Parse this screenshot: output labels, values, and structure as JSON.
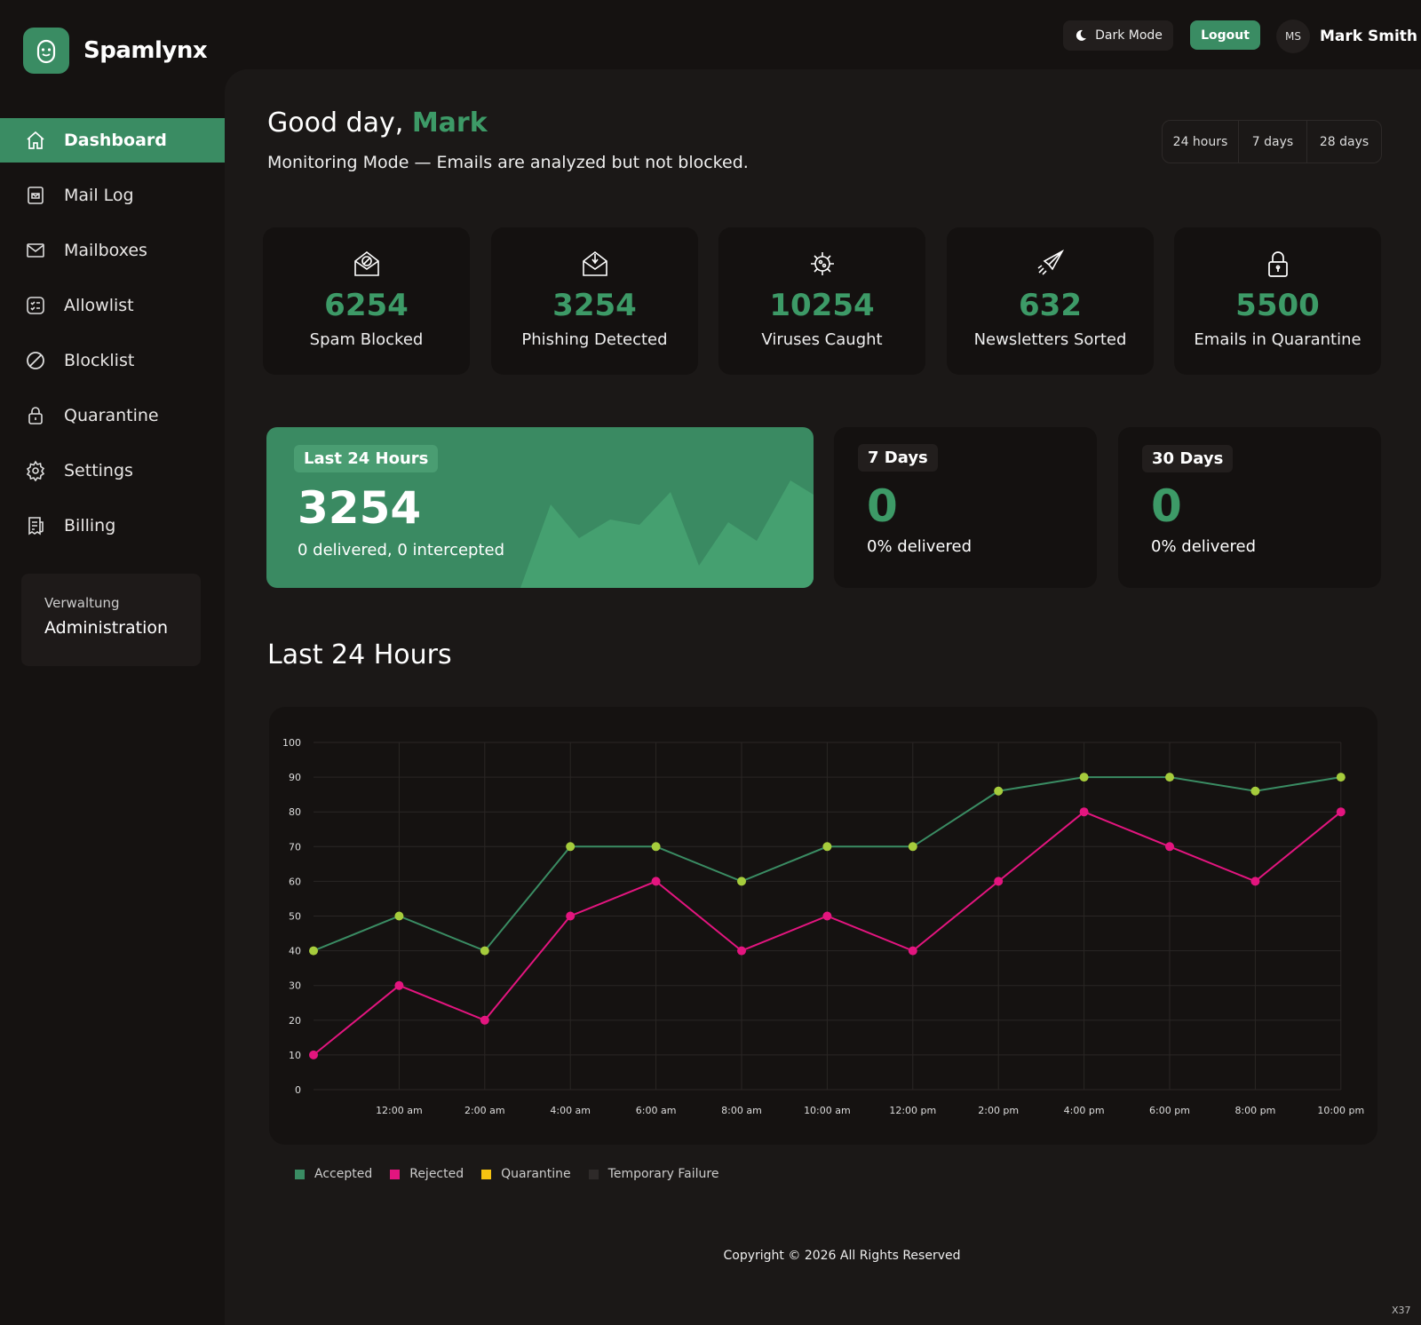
{
  "brand": "Spamlynx",
  "nav": [
    "Dashboard",
    "Mail Log",
    "Mailboxes",
    "Allowlist",
    "Blocklist",
    "Quarantine",
    "Settings",
    "Billing"
  ],
  "admin": {
    "subtitle": "Verwaltung",
    "title": "Administration"
  },
  "topbar": {
    "dark_mode": "Dark Mode",
    "logout": "Logout",
    "initials": "MS",
    "user": "Mark Smith"
  },
  "greeting": {
    "prefix": "Good day,",
    "name": "Mark",
    "subtitle": "Monitoring Mode — Emails are analyzed but not blocked."
  },
  "ranges": [
    "24 hours",
    "7 days",
    "28 days"
  ],
  "stats": [
    {
      "value": 6254,
      "label": "Spam Blocked"
    },
    {
      "value": 3254,
      "label": "Phishing Detected"
    },
    {
      "value": 10254,
      "label": "Viruses Caught"
    },
    {
      "value": 632,
      "label": "Newsletters Sorted"
    },
    {
      "value": 5500,
      "label": "Emails in Quarantine"
    }
  ],
  "summary": [
    {
      "tag": "Last 24 Hours",
      "value": 3254,
      "note": "0 delivered, 0 intercepted"
    },
    {
      "tag": "7 Days",
      "value": 0,
      "note": "0% delivered"
    },
    {
      "tag": "30 Days",
      "value": 0,
      "note": "0% delivered"
    }
  ],
  "chart_data": {
    "type": "line",
    "title": "Last 24 Hours",
    "categories": [
      null,
      "12:00 am",
      "2:00 am",
      "4:00 am",
      "6:00 am",
      "8:00 am",
      "10:00 am",
      "12:00 pm",
      "2:00 pm",
      "4:00 pm",
      "6:00 pm",
      "8:00 pm",
      "10:00 pm"
    ],
    "series": [
      {
        "name": "Accepted",
        "color": "#3a8c63",
        "marker_color": "#a6cc3c",
        "values": [
          40,
          50,
          40,
          70,
          70,
          60,
          70,
          70,
          86,
          90,
          90,
          86,
          90
        ]
      },
      {
        "name": "Rejected",
        "color": "#e3157f",
        "marker_color": "#e3157f",
        "values": [
          10,
          30,
          20,
          50,
          60,
          40,
          50,
          40,
          60,
          80,
          70,
          60,
          80
        ]
      },
      {
        "name": "Quarantine",
        "color": "#f5c211",
        "values": [
          null,
          null,
          null,
          null,
          null,
          null,
          null,
          null,
          null,
          null,
          null,
          null,
          null
        ]
      },
      {
        "name": "Temporary Failure",
        "color": "#2e2a29",
        "values": [
          null,
          null,
          null,
          null,
          null,
          null,
          null,
          null,
          null,
          null,
          null,
          null,
          null
        ]
      }
    ],
    "ylim": [
      0,
      100
    ],
    "yticks": [
      0,
      10,
      20,
      30,
      40,
      50,
      60,
      70,
      80,
      90,
      100
    ],
    "grid": true
  },
  "footer": "Copyright © 2026 All Rights Reserved",
  "build": "X37"
}
